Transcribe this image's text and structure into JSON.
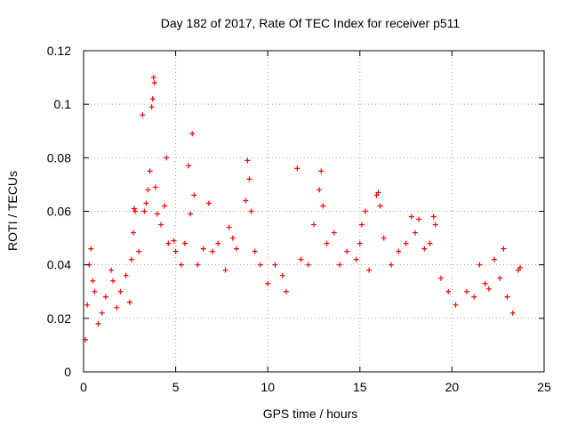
{
  "chart_data": {
    "type": "scatter",
    "title": "Day 182 of 2017, Rate Of TEC Index for receiver p511",
    "xlabel": "GPS time / hours",
    "ylabel": "ROTI / TECUs",
    "xlim": [
      0,
      25
    ],
    "ylim": [
      0,
      0.12
    ],
    "x_ticks": [
      "0",
      "5",
      "10",
      "15",
      "20",
      "25"
    ],
    "y_ticks": [
      "0",
      "0.02",
      "0.04",
      "0.06",
      "0.08",
      "0.1",
      "0.12"
    ],
    "x_tick_values": [
      0,
      5,
      10,
      15,
      20,
      25
    ],
    "y_tick_values": [
      0,
      0.02,
      0.04,
      0.06,
      0.08,
      0.1,
      0.12
    ],
    "grid": true,
    "marker": "plus",
    "series_color": "#ff0000",
    "points": [
      [
        0.1,
        0.012
      ],
      [
        0.2,
        0.025
      ],
      [
        0.3,
        0.04
      ],
      [
        0.4,
        0.046
      ],
      [
        0.5,
        0.034
      ],
      [
        0.6,
        0.03
      ],
      [
        0.8,
        0.018
      ],
      [
        1.0,
        0.022
      ],
      [
        1.2,
        0.028
      ],
      [
        1.5,
        0.038
      ],
      [
        1.6,
        0.034
      ],
      [
        1.8,
        0.024
      ],
      [
        2.0,
        0.03
      ],
      [
        2.3,
        0.036
      ],
      [
        2.5,
        0.026
      ],
      [
        2.6,
        0.042
      ],
      [
        2.7,
        0.052
      ],
      [
        2.75,
        0.061
      ],
      [
        2.8,
        0.06
      ],
      [
        3.0,
        0.045
      ],
      [
        3.2,
        0.096
      ],
      [
        3.3,
        0.06
      ],
      [
        3.4,
        0.063
      ],
      [
        3.5,
        0.068
      ],
      [
        3.6,
        0.075
      ],
      [
        3.7,
        0.099
      ],
      [
        3.75,
        0.102
      ],
      [
        3.8,
        0.11
      ],
      [
        3.85,
        0.108
      ],
      [
        3.9,
        0.069
      ],
      [
        4.0,
        0.059
      ],
      [
        4.2,
        0.055
      ],
      [
        4.4,
        0.062
      ],
      [
        4.5,
        0.08
      ],
      [
        4.6,
        0.048
      ],
      [
        4.9,
        0.049
      ],
      [
        5.0,
        0.045
      ],
      [
        5.3,
        0.04
      ],
      [
        5.5,
        0.048
      ],
      [
        5.7,
        0.077
      ],
      [
        5.8,
        0.059
      ],
      [
        5.9,
        0.089
      ],
      [
        6.0,
        0.066
      ],
      [
        6.2,
        0.04
      ],
      [
        6.5,
        0.046
      ],
      [
        6.8,
        0.063
      ],
      [
        7.0,
        0.045
      ],
      [
        7.3,
        0.048
      ],
      [
        7.7,
        0.038
      ],
      [
        7.9,
        0.054
      ],
      [
        8.1,
        0.05
      ],
      [
        8.3,
        0.046
      ],
      [
        8.8,
        0.064
      ],
      [
        8.9,
        0.079
      ],
      [
        9.0,
        0.072
      ],
      [
        9.1,
        0.06
      ],
      [
        9.3,
        0.045
      ],
      [
        9.6,
        0.04
      ],
      [
        10.0,
        0.033
      ],
      [
        10.4,
        0.04
      ],
      [
        10.8,
        0.036
      ],
      [
        11.0,
        0.03
      ],
      [
        11.6,
        0.076
      ],
      [
        11.8,
        0.042
      ],
      [
        12.2,
        0.04
      ],
      [
        12.5,
        0.055
      ],
      [
        12.8,
        0.068
      ],
      [
        12.9,
        0.075
      ],
      [
        13.0,
        0.062
      ],
      [
        13.2,
        0.048
      ],
      [
        13.6,
        0.052
      ],
      [
        13.9,
        0.04
      ],
      [
        14.3,
        0.045
      ],
      [
        14.8,
        0.042
      ],
      [
        15.0,
        0.048
      ],
      [
        15.1,
        0.055
      ],
      [
        15.3,
        0.06
      ],
      [
        15.5,
        0.038
      ],
      [
        15.9,
        0.066
      ],
      [
        16.0,
        0.067
      ],
      [
        16.1,
        0.062
      ],
      [
        16.3,
        0.05
      ],
      [
        16.7,
        0.04
      ],
      [
        17.1,
        0.045
      ],
      [
        17.5,
        0.048
      ],
      [
        17.8,
        0.058
      ],
      [
        18.0,
        0.052
      ],
      [
        18.2,
        0.057
      ],
      [
        18.5,
        0.046
      ],
      [
        18.8,
        0.048
      ],
      [
        19.0,
        0.058
      ],
      [
        19.1,
        0.055
      ],
      [
        19.4,
        0.035
      ],
      [
        19.8,
        0.03
      ],
      [
        20.2,
        0.025
      ],
      [
        20.8,
        0.03
      ],
      [
        21.2,
        0.028
      ],
      [
        21.5,
        0.04
      ],
      [
        21.8,
        0.033
      ],
      [
        22.0,
        0.031
      ],
      [
        22.3,
        0.042
      ],
      [
        22.6,
        0.035
      ],
      [
        22.8,
        0.046
      ],
      [
        23.0,
        0.028
      ],
      [
        23.3,
        0.022
      ],
      [
        23.6,
        0.038
      ],
      [
        23.7,
        0.039
      ]
    ]
  }
}
